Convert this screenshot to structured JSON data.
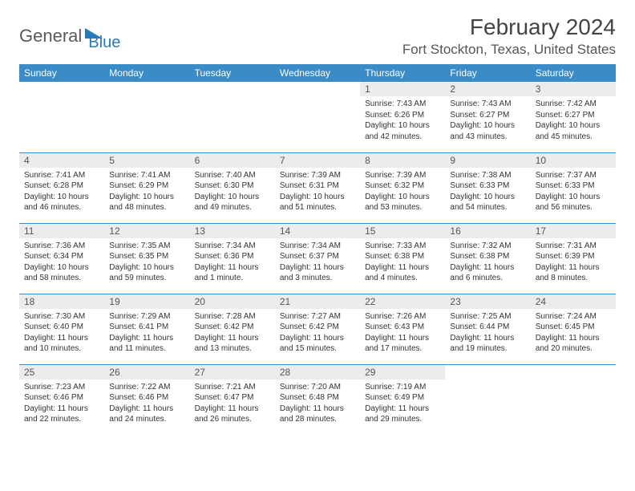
{
  "brand": {
    "part1": "General",
    "part2": "Blue"
  },
  "title": "February 2024",
  "location": "Fort Stockton, Texas, United States",
  "colors": {
    "header_bg": "#3b8bc6",
    "header_text": "#ffffff",
    "daynum_bg": "#ececec",
    "border": "#3b8bc6",
    "brand_blue": "#2a7ab8"
  },
  "day_headers": [
    "Sunday",
    "Monday",
    "Tuesday",
    "Wednesday",
    "Thursday",
    "Friday",
    "Saturday"
  ],
  "weeks": [
    [
      {
        "num": "",
        "sunrise": "",
        "sunset": "",
        "daylight": ""
      },
      {
        "num": "",
        "sunrise": "",
        "sunset": "",
        "daylight": ""
      },
      {
        "num": "",
        "sunrise": "",
        "sunset": "",
        "daylight": ""
      },
      {
        "num": "",
        "sunrise": "",
        "sunset": "",
        "daylight": ""
      },
      {
        "num": "1",
        "sunrise": "7:43 AM",
        "sunset": "6:26 PM",
        "daylight": "10 hours and 42 minutes."
      },
      {
        "num": "2",
        "sunrise": "7:43 AM",
        "sunset": "6:27 PM",
        "daylight": "10 hours and 43 minutes."
      },
      {
        "num": "3",
        "sunrise": "7:42 AM",
        "sunset": "6:27 PM",
        "daylight": "10 hours and 45 minutes."
      }
    ],
    [
      {
        "num": "4",
        "sunrise": "7:41 AM",
        "sunset": "6:28 PM",
        "daylight": "10 hours and 46 minutes."
      },
      {
        "num": "5",
        "sunrise": "7:41 AM",
        "sunset": "6:29 PM",
        "daylight": "10 hours and 48 minutes."
      },
      {
        "num": "6",
        "sunrise": "7:40 AM",
        "sunset": "6:30 PM",
        "daylight": "10 hours and 49 minutes."
      },
      {
        "num": "7",
        "sunrise": "7:39 AM",
        "sunset": "6:31 PM",
        "daylight": "10 hours and 51 minutes."
      },
      {
        "num": "8",
        "sunrise": "7:39 AM",
        "sunset": "6:32 PM",
        "daylight": "10 hours and 53 minutes."
      },
      {
        "num": "9",
        "sunrise": "7:38 AM",
        "sunset": "6:33 PM",
        "daylight": "10 hours and 54 minutes."
      },
      {
        "num": "10",
        "sunrise": "7:37 AM",
        "sunset": "6:33 PM",
        "daylight": "10 hours and 56 minutes."
      }
    ],
    [
      {
        "num": "11",
        "sunrise": "7:36 AM",
        "sunset": "6:34 PM",
        "daylight": "10 hours and 58 minutes."
      },
      {
        "num": "12",
        "sunrise": "7:35 AM",
        "sunset": "6:35 PM",
        "daylight": "10 hours and 59 minutes."
      },
      {
        "num": "13",
        "sunrise": "7:34 AM",
        "sunset": "6:36 PM",
        "daylight": "11 hours and 1 minute."
      },
      {
        "num": "14",
        "sunrise": "7:34 AM",
        "sunset": "6:37 PM",
        "daylight": "11 hours and 3 minutes."
      },
      {
        "num": "15",
        "sunrise": "7:33 AM",
        "sunset": "6:38 PM",
        "daylight": "11 hours and 4 minutes."
      },
      {
        "num": "16",
        "sunrise": "7:32 AM",
        "sunset": "6:38 PM",
        "daylight": "11 hours and 6 minutes."
      },
      {
        "num": "17",
        "sunrise": "7:31 AM",
        "sunset": "6:39 PM",
        "daylight": "11 hours and 8 minutes."
      }
    ],
    [
      {
        "num": "18",
        "sunrise": "7:30 AM",
        "sunset": "6:40 PM",
        "daylight": "11 hours and 10 minutes."
      },
      {
        "num": "19",
        "sunrise": "7:29 AM",
        "sunset": "6:41 PM",
        "daylight": "11 hours and 11 minutes."
      },
      {
        "num": "20",
        "sunrise": "7:28 AM",
        "sunset": "6:42 PM",
        "daylight": "11 hours and 13 minutes."
      },
      {
        "num": "21",
        "sunrise": "7:27 AM",
        "sunset": "6:42 PM",
        "daylight": "11 hours and 15 minutes."
      },
      {
        "num": "22",
        "sunrise": "7:26 AM",
        "sunset": "6:43 PM",
        "daylight": "11 hours and 17 minutes."
      },
      {
        "num": "23",
        "sunrise": "7:25 AM",
        "sunset": "6:44 PM",
        "daylight": "11 hours and 19 minutes."
      },
      {
        "num": "24",
        "sunrise": "7:24 AM",
        "sunset": "6:45 PM",
        "daylight": "11 hours and 20 minutes."
      }
    ],
    [
      {
        "num": "25",
        "sunrise": "7:23 AM",
        "sunset": "6:46 PM",
        "daylight": "11 hours and 22 minutes."
      },
      {
        "num": "26",
        "sunrise": "7:22 AM",
        "sunset": "6:46 PM",
        "daylight": "11 hours and 24 minutes."
      },
      {
        "num": "27",
        "sunrise": "7:21 AM",
        "sunset": "6:47 PM",
        "daylight": "11 hours and 26 minutes."
      },
      {
        "num": "28",
        "sunrise": "7:20 AM",
        "sunset": "6:48 PM",
        "daylight": "11 hours and 28 minutes."
      },
      {
        "num": "29",
        "sunrise": "7:19 AM",
        "sunset": "6:49 PM",
        "daylight": "11 hours and 29 minutes."
      },
      {
        "num": "",
        "sunrise": "",
        "sunset": "",
        "daylight": ""
      },
      {
        "num": "",
        "sunrise": "",
        "sunset": "",
        "daylight": ""
      }
    ]
  ],
  "labels": {
    "sunrise": "Sunrise:",
    "sunset": "Sunset:",
    "daylight": "Daylight:"
  }
}
